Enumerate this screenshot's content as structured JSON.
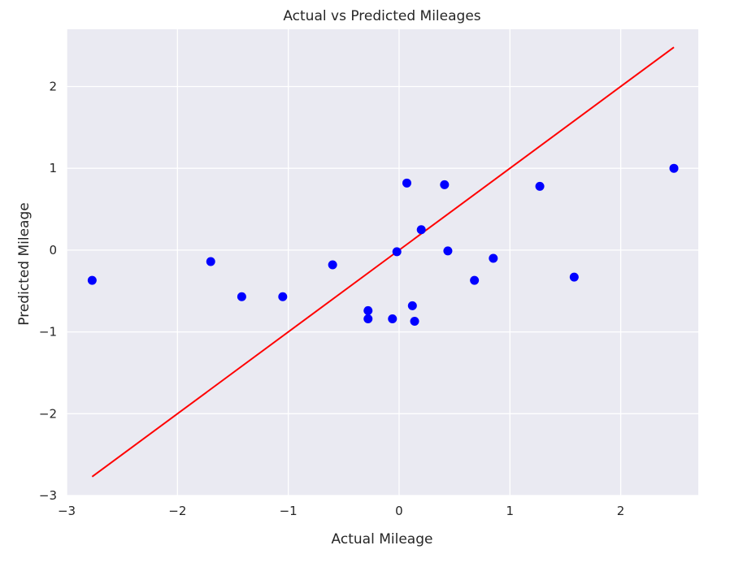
{
  "chart_data": {
    "type": "scatter",
    "title": "Actual vs Predicted Mileages",
    "xlabel": "Actual Mileage",
    "ylabel": "Predicted Mileage",
    "xlim": [
      -3.0,
      2.7
    ],
    "ylim": [
      -3.0,
      2.7
    ],
    "xticks": [
      -3,
      -2,
      -1,
      0,
      1,
      2
    ],
    "yticks": [
      -3,
      -2,
      -1,
      0,
      1,
      2
    ],
    "xtick_labels": [
      "−3",
      "−2",
      "−1",
      "0",
      "1",
      "2"
    ],
    "ytick_labels": [
      "−3",
      "−2",
      "−1",
      "0",
      "1",
      "2"
    ],
    "grid": true,
    "background_color": "#eaeaf2",
    "series": [
      {
        "type": "scatter",
        "color": "#0000ff",
        "points": [
          {
            "x": -2.77,
            "y": -0.37
          },
          {
            "x": -1.7,
            "y": -0.14
          },
          {
            "x": -1.42,
            "y": -0.57
          },
          {
            "x": -1.05,
            "y": -0.57
          },
          {
            "x": -0.6,
            "y": -0.18
          },
          {
            "x": -0.28,
            "y": -0.74
          },
          {
            "x": -0.28,
            "y": -0.84
          },
          {
            "x": -0.06,
            "y": -0.84
          },
          {
            "x": -0.02,
            "y": -0.02
          },
          {
            "x": 0.07,
            "y": 0.82
          },
          {
            "x": 0.12,
            "y": -0.68
          },
          {
            "x": 0.14,
            "y": -0.87
          },
          {
            "x": 0.2,
            "y": 0.25
          },
          {
            "x": 0.41,
            "y": 0.8
          },
          {
            "x": 0.44,
            "y": -0.01
          },
          {
            "x": 0.68,
            "y": -0.37
          },
          {
            "x": 0.85,
            "y": -0.1
          },
          {
            "x": 1.27,
            "y": 0.78
          },
          {
            "x": 1.58,
            "y": -0.33
          },
          {
            "x": 2.48,
            "y": 1.0
          }
        ]
      },
      {
        "type": "line",
        "color": "#ff0000",
        "points": [
          {
            "x": -2.77,
            "y": -2.77
          },
          {
            "x": 2.48,
            "y": 2.48
          }
        ]
      }
    ]
  }
}
